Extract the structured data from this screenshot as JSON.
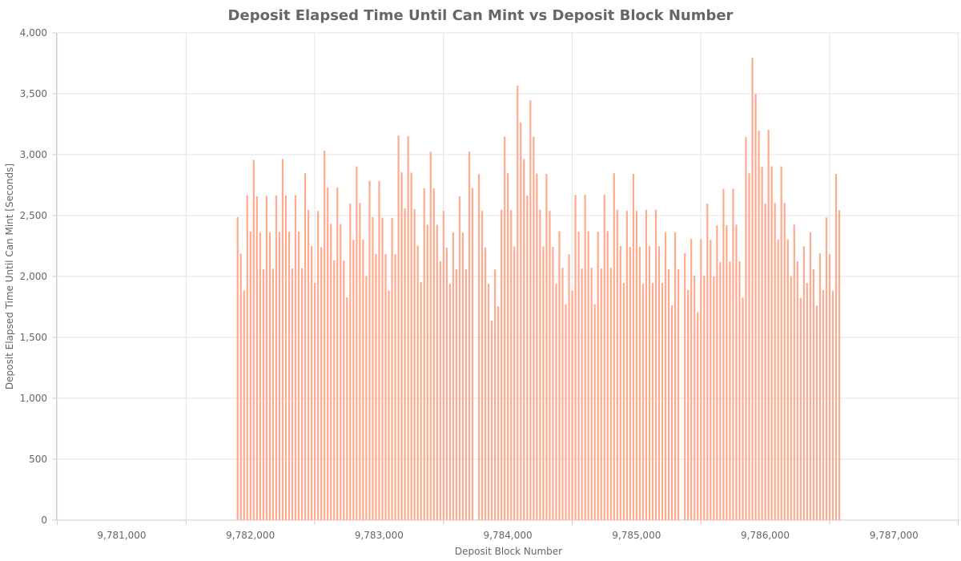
{
  "chart_data": {
    "type": "bar",
    "title": "Deposit Elapsed Time Until Can Mint vs Deposit Block Number",
    "xlabel": "Deposit Block Number",
    "ylabel": "Deposit Elapsed Time Until Can Mint [Seconds]",
    "xlim": [
      9780490,
      9787515
    ],
    "ylim": [
      0,
      4000
    ],
    "grid": true,
    "bar_color": "#ffa98e",
    "x_ticks": [
      9781000,
      9782000,
      9783000,
      9784000,
      9785000,
      9786000,
      9787000
    ],
    "x_tick_labels": [
      "9,781,000",
      "9,782,000",
      "9,783,000",
      "9,784,000",
      "9,785,000",
      "9,786,000",
      "9,787,000"
    ],
    "y_ticks": [
      0,
      500,
      1000,
      1500,
      2000,
      2500,
      3000,
      3500,
      4000
    ],
    "y_tick_labels": [
      "0",
      "500",
      "1,000",
      "1,500",
      "2,000",
      "2,500",
      "3,000",
      "3,500",
      "4,000"
    ],
    "x_start": 9781900,
    "x_step": 25,
    "values": [
      2487,
      2186,
      1886,
      2667,
      2368,
      2958,
      2658,
      2360,
      2059,
      2662,
      2362,
      2064,
      2665,
      2366,
      2965,
      2665,
      2366,
      2066,
      2667,
      2368,
      2068,
      2847,
      2548,
      2248,
      1947,
      2537,
      2241,
      3033,
      2730,
      2432,
      2132,
      2730,
      2430,
      2130,
      1829,
      2599,
      2300,
      2904,
      2603,
      2303,
      2004,
      2785,
      2487,
      2186,
      2783,
      2483,
      2184,
      1886,
      2479,
      2182,
      3156,
      2855,
      2559,
      3152,
      2853,
      2553,
      2254,
      1954,
      2724,
      2425,
      3024,
      2724,
      2425,
      2125,
      2539,
      2237,
      1939,
      2362,
      2061,
      2658,
      2360,
      2059,
      3026,
      2726,
      null,
      2840,
      2539,
      2239,
      1939,
      1638,
      2057,
      1757,
      2548,
      3147,
      2847,
      2546,
      2246,
      3566,
      3265,
      2965,
      2664,
      3447,
      3147,
      2845,
      2548,
      2246,
      2842,
      2539,
      2243,
      1941,
      2371,
      2072,
      1772,
      2182,
      1882,
      2669,
      2368,
      2066,
      2671,
      2371,
      2072,
      1772,
      2366,
      2066,
      2671,
      2373,
      2072,
      2847,
      2548,
      2250,
      1947,
      2539,
      2241,
      2842,
      2539,
      2245,
      1941,
      2548,
      2248,
      1947,
      2548,
      2248,
      1947,
      2362,
      2061,
      1763,
      2362,
      2061,
      null,
      2191,
      1890,
      2309,
      2007,
      1708,
      2307,
      2007,
      2599,
      2300,
      2000,
      2419,
      2118,
      2720,
      2421,
      2123,
      2720,
      2425,
      2125,
      1827,
      3145,
      2847,
      3796,
      3498,
      3197,
      2899,
      2599,
      3204,
      2904,
      2603,
      2303,
      2904,
      2605,
      2305,
      2004,
      2425,
      2125,
      1825,
      2248,
      1947,
      2362,
      2059,
      1761,
      2189,
      1888,
      2485,
      2184,
      1882,
      2842,
      2544
    ]
  }
}
